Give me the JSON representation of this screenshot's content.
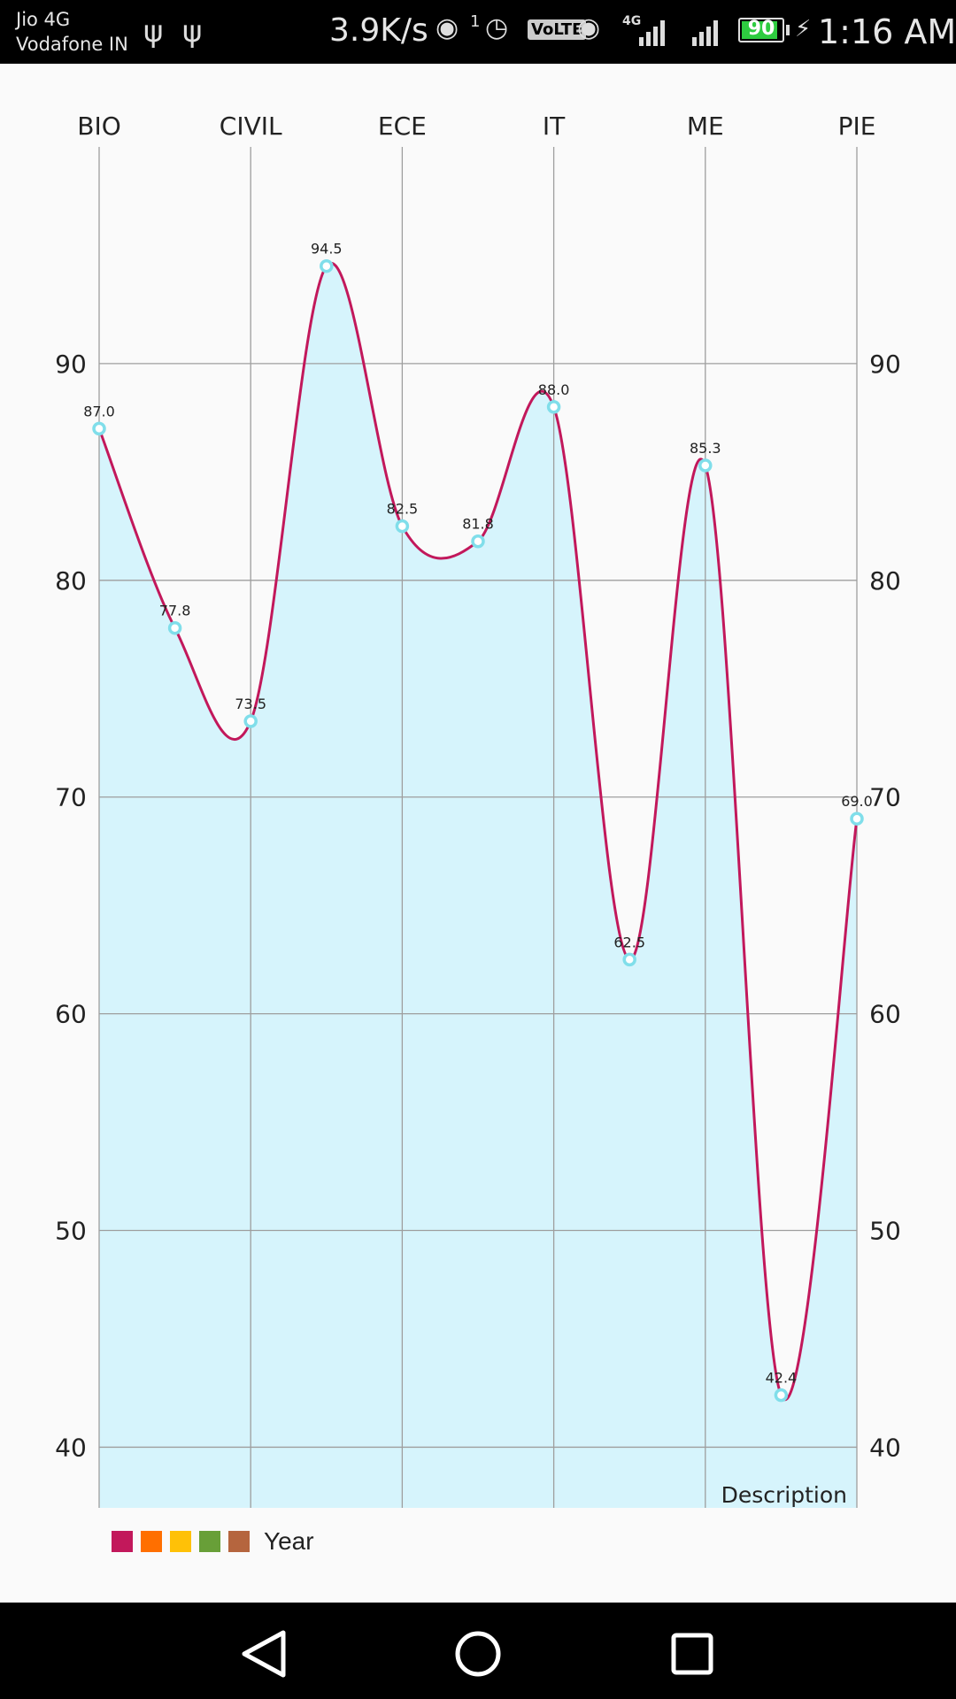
{
  "status_bar": {
    "carrier_1": "Jio 4G",
    "carrier_2": "Vodafone IN",
    "usb_icons": [
      "usb-icon",
      "usb-icon"
    ],
    "net_speed": "3.9K/s",
    "hotspot_count": "1",
    "volte": "VoLTE",
    "network_type": "4G",
    "battery": "90",
    "battery_level": 0.9,
    "time": "1:16 AM"
  },
  "chart_data": {
    "type": "line",
    "style": "cubic-spline-with-fill",
    "categories": [
      "BIO",
      "",
      "CIVIL",
      "",
      "ECE",
      "",
      "IT",
      "",
      "ME",
      "",
      "PIE"
    ],
    "x_axis_labels": [
      "BIO",
      "CIVIL",
      "ECE",
      "IT",
      "ME",
      "PIE"
    ],
    "x_axis_position": "top",
    "series": [
      {
        "values": [
          87.0,
          77.8,
          73.5,
          94.5,
          82.5,
          81.8,
          88.0,
          62.5,
          85.3,
          42.4,
          69.0
        ],
        "value_labels": [
          "87.0",
          "77.8",
          "73.5",
          "94.5",
          "82.5",
          "81.8",
          "88.0",
          "62.5",
          "85.3",
          "42.4",
          "69.0"
        ],
        "line_color": "#c2185b",
        "fill_color": "#d6f4fc",
        "circle_color": "#80deea"
      }
    ],
    "y_ticks": [
      40,
      50,
      60,
      70,
      80,
      90
    ],
    "y_tick_labels": [
      "40",
      "50",
      "60",
      "70",
      "80",
      "90"
    ],
    "ylim": [
      37.2,
      100.0
    ],
    "y_axis": "left and right",
    "grid": true,
    "description": "Description",
    "legend": {
      "label": "Year",
      "placement": "bottom-left",
      "colors": [
        "#c2185b",
        "#ff6f00",
        "#ffc107",
        "#689f38",
        "#b5653e"
      ]
    }
  },
  "nav_bar": {
    "buttons": [
      "back-icon",
      "home-icon",
      "recents-icon"
    ]
  }
}
